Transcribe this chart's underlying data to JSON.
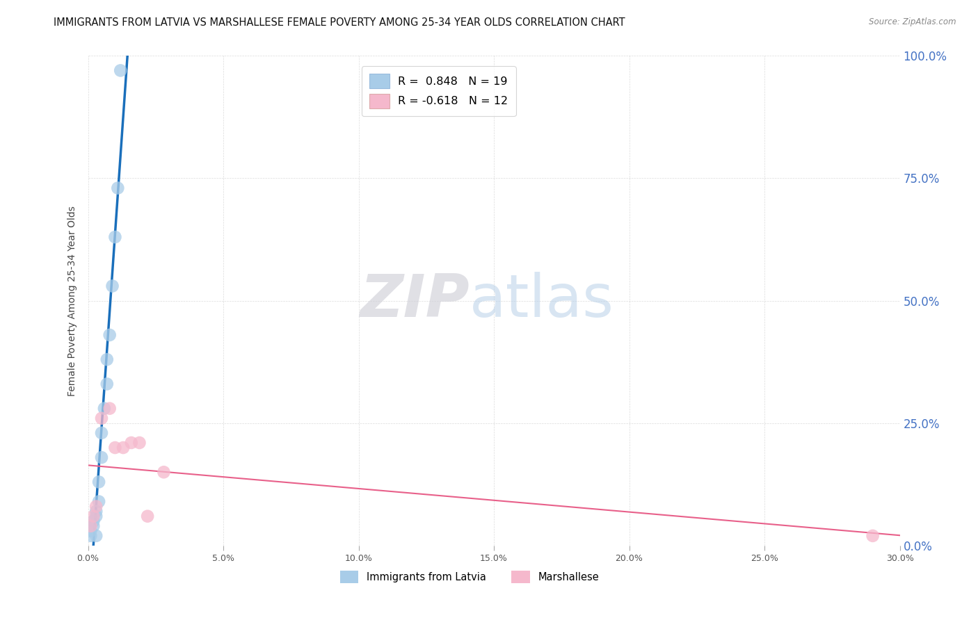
{
  "title": "IMMIGRANTS FROM LATVIA VS MARSHALLESE FEMALE POVERTY AMONG 25-34 YEAR OLDS CORRELATION CHART",
  "source": "Source: ZipAtlas.com",
  "ylabel": "Female Poverty Among 25-34 Year Olds",
  "xlim": [
    0,
    0.3
  ],
  "ylim": [
    0,
    1.0
  ],
  "yticks": [
    0.0,
    0.25,
    0.5,
    0.75,
    1.0
  ],
  "xticks": [
    0.0,
    0.05,
    0.1,
    0.15,
    0.2,
    0.25,
    0.3
  ],
  "right_ytick_labels": [
    "0.0%",
    "25.0%",
    "50.0%",
    "75.0%",
    "100.0%"
  ],
  "xtick_labels": [
    "0.0%",
    "5.0%",
    "10.0%",
    "15.0%",
    "20.0%",
    "25.0%",
    "30.0%"
  ],
  "latvia_R": 0.848,
  "latvia_N": 19,
  "marshallese_R": -0.618,
  "marshallese_N": 12,
  "latvia_color": "#a8cce8",
  "marshallese_color": "#f5b8cc",
  "latvia_line_color": "#1a6fbb",
  "marshallese_line_color": "#e8608a",
  "latvia_x": [
    0.001,
    0.001,
    0.002,
    0.002,
    0.003,
    0.003,
    0.004,
    0.004,
    0.005,
    0.005,
    0.006,
    0.007,
    0.007,
    0.008,
    0.009,
    0.01,
    0.011,
    0.012,
    0.003
  ],
  "latvia_y": [
    0.02,
    0.03,
    0.04,
    0.05,
    0.06,
    0.07,
    0.09,
    0.13,
    0.18,
    0.23,
    0.28,
    0.33,
    0.38,
    0.43,
    0.53,
    0.63,
    0.73,
    0.97,
    0.02
  ],
  "marshallese_x": [
    0.001,
    0.002,
    0.003,
    0.005,
    0.008,
    0.01,
    0.013,
    0.016,
    0.019,
    0.022,
    0.028,
    0.29
  ],
  "marshallese_y": [
    0.04,
    0.06,
    0.08,
    0.26,
    0.28,
    0.2,
    0.2,
    0.21,
    0.21,
    0.06,
    0.15,
    0.02
  ],
  "background_color": "#ffffff",
  "grid_color": "#cccccc",
  "title_fontsize": 10.5,
  "axis_label_fontsize": 10,
  "tick_fontsize": 9,
  "right_tick_color": "#4472c4",
  "title_color": "#111111",
  "source_color": "#888888"
}
